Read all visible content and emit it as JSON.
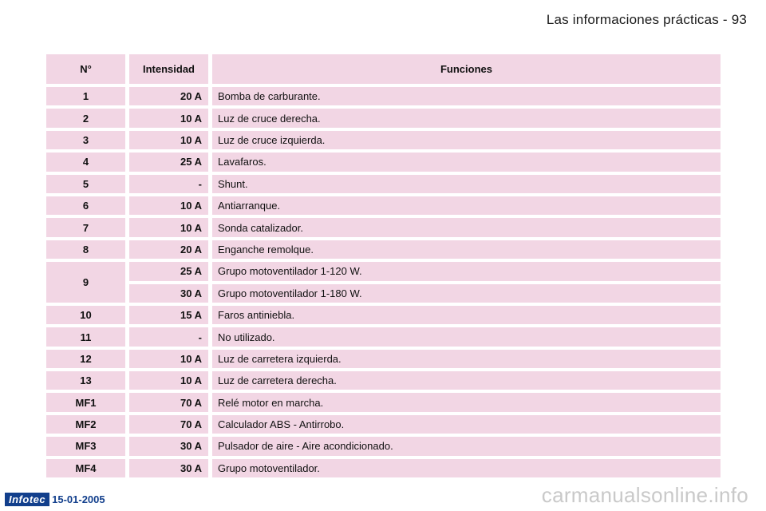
{
  "header": {
    "title": "Las informaciones prácticas - 93"
  },
  "table": {
    "columns": {
      "num": "N°",
      "amp": "Intensidad",
      "fn": "Funciones"
    },
    "rows_before": [
      {
        "num": "1",
        "amp": "20 A",
        "fn": "Bomba de carburante."
      },
      {
        "num": "2",
        "amp": "10 A",
        "fn": "Luz de cruce derecha."
      },
      {
        "num": "3",
        "amp": "10 A",
        "fn": "Luz de cruce izquierda."
      },
      {
        "num": "4",
        "amp": "25 A",
        "fn": "Lavafaros."
      },
      {
        "num": "5",
        "amp": "-",
        "fn": "Shunt."
      },
      {
        "num": "6",
        "amp": "10 A",
        "fn": "Antiarranque."
      },
      {
        "num": "7",
        "amp": "10 A",
        "fn": "Sonda catalizador."
      },
      {
        "num": "8",
        "amp": "20 A",
        "fn": "Enganche remolque."
      }
    ],
    "group9": {
      "num": "9",
      "subrows": [
        {
          "amp": "25 A",
          "fn": "Grupo motoventilador 1-120 W."
        },
        {
          "amp": "30 A",
          "fn": "Grupo motoventilador 1-180 W."
        }
      ]
    },
    "rows_after": [
      {
        "num": "10",
        "amp": "15 A",
        "fn": "Faros antiniebla."
      },
      {
        "num": "11",
        "amp": "-",
        "fn": "No utilizado."
      },
      {
        "num": "12",
        "amp": "10 A",
        "fn": "Luz de carretera izquierda."
      },
      {
        "num": "13",
        "amp": "10 A",
        "fn": "Luz de carretera derecha."
      },
      {
        "num": "MF1",
        "amp": "70 A",
        "fn": "Relé motor en marcha."
      },
      {
        "num": "MF2",
        "amp": "70 A",
        "fn": "Calculador ABS - Antirrobo."
      },
      {
        "num": "MF3",
        "amp": "30 A",
        "fn": "Pulsador de aire - Aire acondicionado."
      },
      {
        "num": "MF4",
        "amp": "30 A",
        "fn": "Grupo motoventilador."
      }
    ]
  },
  "footer": {
    "logo": "Infotec",
    "date": "15-01-2005"
  },
  "watermark": "carmanualsonline.info",
  "colors": {
    "row_bg": "#f2d6e4",
    "brand_blue": "#123f8c",
    "watermark": "#c9c9c9"
  }
}
